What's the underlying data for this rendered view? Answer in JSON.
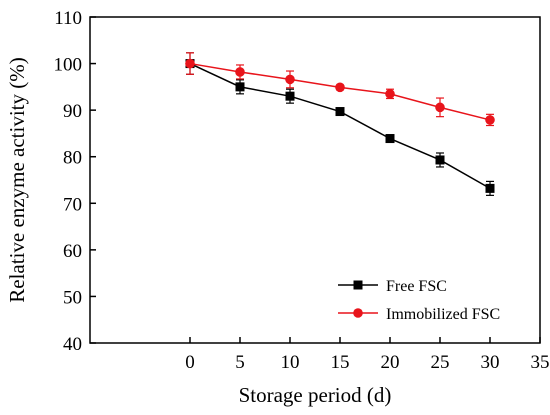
{
  "chart_data": {
    "type": "line",
    "xlabel": "Storage period (d)",
    "ylabel": "Relative enzyme activity (%)",
    "xlim": [
      -10,
      35
    ],
    "ylim": [
      40,
      110
    ],
    "x_ticks": [
      0,
      5,
      10,
      15,
      20,
      25,
      30,
      35
    ],
    "y_ticks": [
      40,
      50,
      60,
      70,
      80,
      90,
      100,
      110
    ],
    "x_tick_labels": [
      "0",
      "5",
      "10",
      "15",
      "20",
      "25",
      "30",
      "35"
    ],
    "y_tick_labels": [
      "40",
      "50",
      "60",
      "70",
      "80",
      "90",
      "100",
      "110"
    ],
    "grid": false,
    "legend_position": "bottom-right",
    "x": [
      0,
      5,
      10,
      15,
      20,
      25,
      30
    ],
    "series": [
      {
        "name": "Free FSC",
        "marker": "square",
        "color": "#000000",
        "values": [
          100,
          95,
          93,
          89.7,
          83.9,
          79.3,
          73.2
        ],
        "errors": [
          2.3,
          1.5,
          1.5,
          0.6,
          0.8,
          1.5,
          1.5
        ]
      },
      {
        "name": "Immobilized FSC",
        "marker": "circle",
        "color": "#e8141b",
        "values": [
          100,
          98.2,
          96.6,
          94.9,
          93.5,
          90.6,
          87.9
        ],
        "errors": [
          2.3,
          1.5,
          1.8,
          0.5,
          1.0,
          2.0,
          1.2
        ]
      }
    ]
  }
}
